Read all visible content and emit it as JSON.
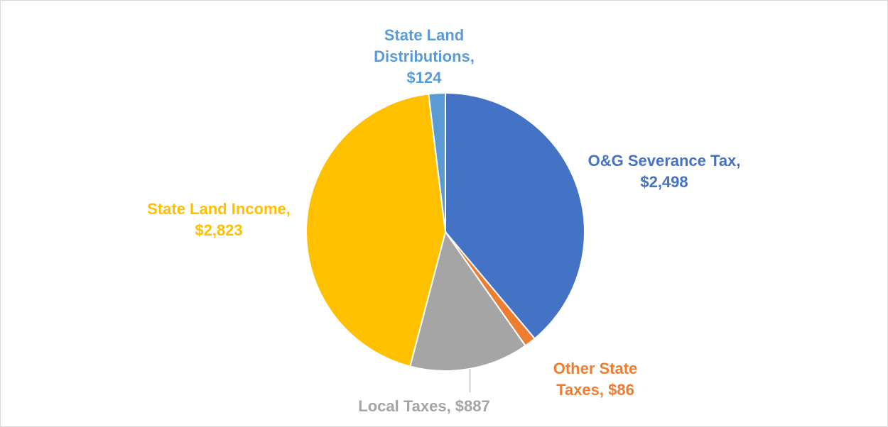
{
  "chart_data": {
    "type": "pie",
    "values": [
      2498,
      86,
      887,
      2823,
      124
    ],
    "value_labels": [
      "O&G Severance Tax, $2,498",
      "Other State Taxes, $86",
      "Local Taxes, $887",
      "State Land Income, $2,823",
      "State Land Distributions, $124"
    ],
    "colors": [
      "#4472c4",
      "#ed7d31",
      "#a5a5a5",
      "#ffc000",
      "#5b9bd5"
    ]
  }
}
